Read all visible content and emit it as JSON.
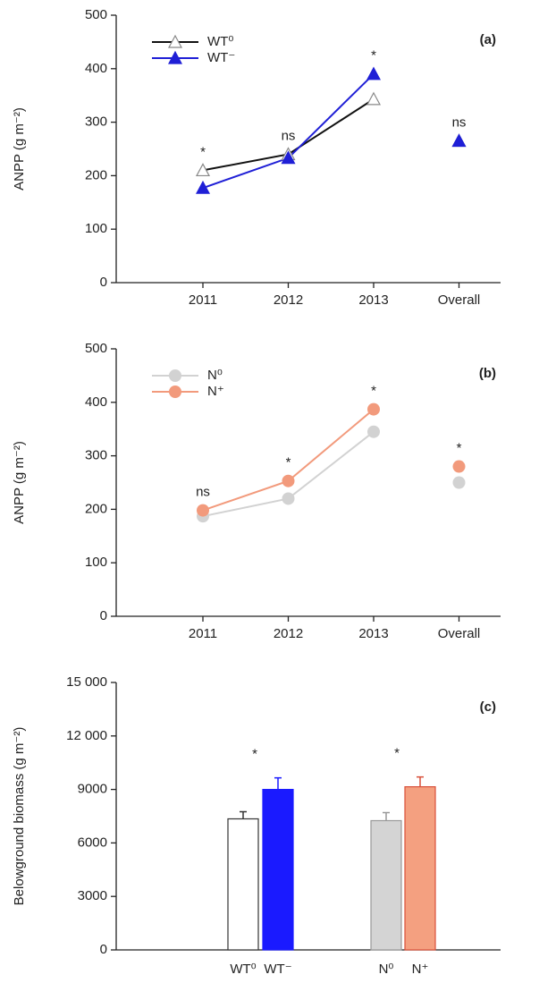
{
  "chart_data": [
    {
      "type": "line",
      "panel_label": "(a)",
      "y_label": "ANPP (g m⁻²)",
      "categories": [
        "2011",
        "2012",
        "2013",
        "Overall"
      ],
      "unconnected_last": true,
      "series": [
        {
          "name": "WT⁰",
          "color": "#111111",
          "marker": "triangle-open",
          "values": [
            210,
            240,
            343,
            265
          ]
        },
        {
          "name": "WT⁻",
          "color": "#1f1fd6",
          "marker": "triangle",
          "values": [
            177,
            233,
            390,
            265
          ]
        }
      ],
      "annotations": [
        "*",
        "ns",
        "*",
        "ns"
      ],
      "ylim": [
        0,
        500
      ],
      "yticks": [
        0,
        100,
        200,
        300,
        400,
        500
      ],
      "legend": "top-left"
    },
    {
      "type": "line",
      "panel_label": "(b)",
      "y_label": "ANPP (g m⁻²)",
      "categories": [
        "2011",
        "2012",
        "2013",
        "Overall"
      ],
      "unconnected_last": true,
      "series": [
        {
          "name": "N⁰",
          "color": "#d2d2d2",
          "marker": "circle",
          "values": [
            187,
            220,
            345,
            250
          ]
        },
        {
          "name": "N⁺",
          "color": "#f29a7c",
          "marker": "circle",
          "values": [
            198,
            253,
            387,
            280
          ]
        }
      ],
      "annotations": [
        "ns",
        "*",
        "*",
        "*"
      ],
      "ylim": [
        0,
        500
      ],
      "yticks": [
        0,
        100,
        200,
        300,
        400,
        500
      ],
      "legend": "top-left"
    },
    {
      "type": "bar",
      "panel_label": "(c)",
      "y_label": "Belowground biomass (g m⁻²)",
      "categories": [
        "WT⁰",
        "WT⁻",
        "N⁰",
        "N⁺"
      ],
      "values": [
        7350,
        9000,
        7250,
        9150
      ],
      "errors": [
        400,
        650,
        450,
        550
      ],
      "colors": [
        "#ffffff",
        "#1a1aff",
        "#d4d4d4",
        "#f4a080"
      ],
      "edge_colors": [
        "#333333",
        "#1a1aff",
        "#999999",
        "#d9503a"
      ],
      "annotations": [
        null,
        "*",
        null,
        "*"
      ],
      "ylim": [
        0,
        15000
      ],
      "yticks": [
        0,
        3000,
        6000,
        9000,
        {
          "value": 12000,
          "label": "12 000"
        },
        {
          "value": 15000,
          "label": "15 000"
        }
      ]
    }
  ]
}
